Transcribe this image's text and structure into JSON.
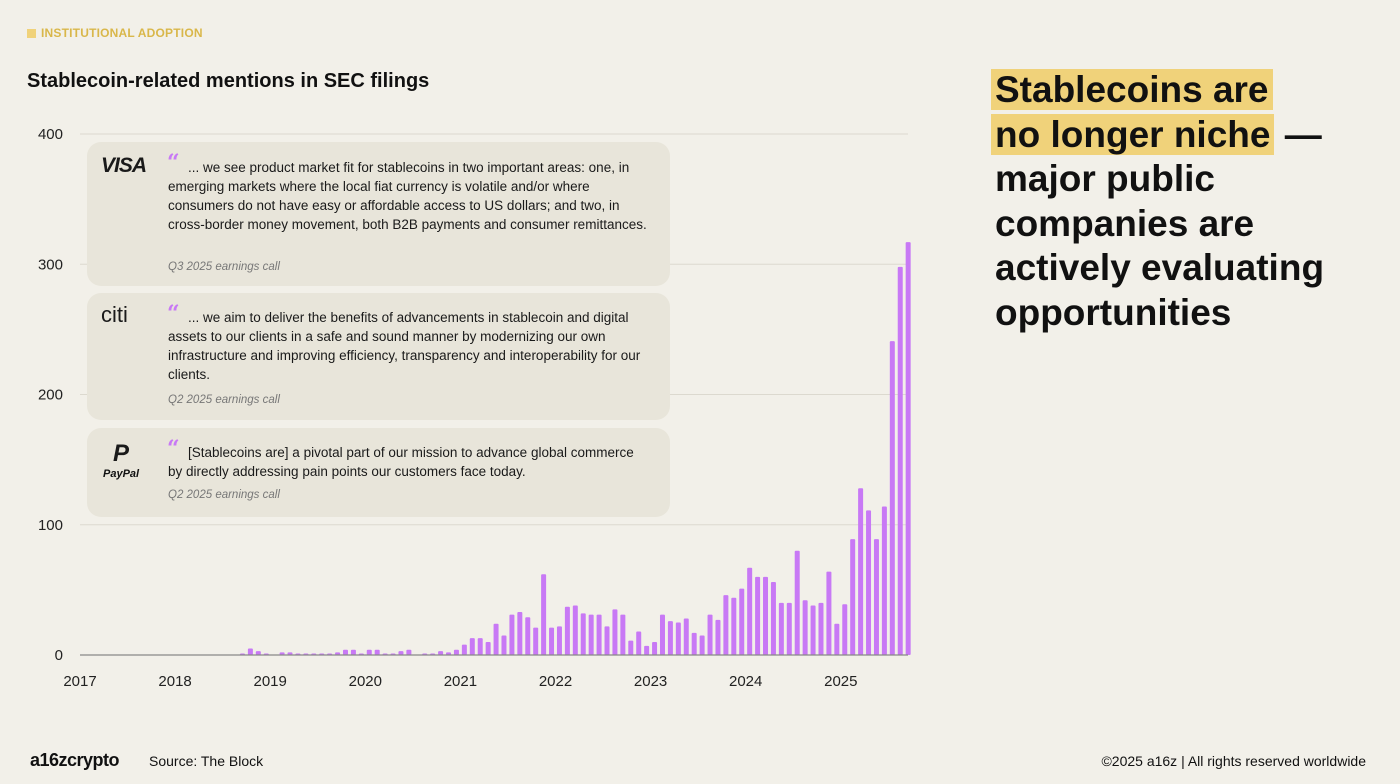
{
  "section_tag": "INSTITUTIONAL ADOPTION",
  "headline": {
    "highlight_1": "Stablecoins are",
    "highlight_2": "no longer niche",
    "rest": " — major public companies are actively evaluating opportunities"
  },
  "quotes": [
    {
      "company": "VISA",
      "text": "... we see product market fit for stablecoins in two important areas: one, in emerging markets where the local fiat currency is volatile and/or where consumers do not have easy or affordable access to US dollars; and two, in cross-border money movement, both B2B payments and consumer remittances.",
      "source": "Q3 2025 earnings call"
    },
    {
      "company": "citi",
      "text": "... we aim to deliver the benefits of advancements in stablecoin and digital assets to our clients in a safe and sound manner by modernizing our own infrastructure and improving efficiency, transparency and interoperability for our clients.",
      "source": "Q2 2025 earnings call"
    },
    {
      "company": "PayPal",
      "text": "[Stablecoins are] a pivotal part of our mission to advance global commerce by directly addressing pain points our customers face today.",
      "source": "Q2 2025 earnings call"
    }
  ],
  "footer": {
    "logo": "a16zcrypto",
    "source": "Source: The Block",
    "copyright": "©2025 a16z | All rights reserved worldwide"
  },
  "chart_data": {
    "type": "bar",
    "title": "Stablecoin-related mentions in SEC filings",
    "xlabel": "",
    "ylabel": "",
    "ylim": [
      0,
      400
    ],
    "yticks": [
      "0",
      "100",
      "200",
      "300",
      "400"
    ],
    "xticks": [
      "2017",
      "2018",
      "2019",
      "2020",
      "2021",
      "2022",
      "2023",
      "2024",
      "2025"
    ],
    "x_start": "2017-01",
    "frequency": "monthly",
    "grid": true,
    "bar_color": "#c879f5",
    "values": [
      0,
      0,
      0,
      0,
      0,
      0,
      0,
      0,
      0,
      0,
      0,
      0,
      0,
      0,
      0,
      0,
      0,
      0,
      0,
      0,
      1,
      5,
      3,
      1,
      0,
      2,
      2,
      1,
      1,
      1,
      1,
      1,
      2,
      4,
      4,
      1,
      4,
      4,
      1,
      1,
      3,
      4,
      0,
      1,
      1,
      3,
      2,
      4,
      8,
      13,
      13,
      10,
      24,
      15,
      31,
      33,
      29,
      21,
      62,
      21,
      22,
      37,
      38,
      32,
      31,
      31,
      22,
      35,
      31,
      11,
      18,
      7,
      10,
      31,
      26,
      25,
      28,
      17,
      15,
      31,
      27,
      46,
      44,
      51,
      67,
      60,
      60,
      56,
      40,
      40,
      80,
      42,
      38,
      40,
      64,
      24,
      39,
      89,
      128,
      111,
      89,
      114,
      241,
      298,
      317
    ]
  }
}
